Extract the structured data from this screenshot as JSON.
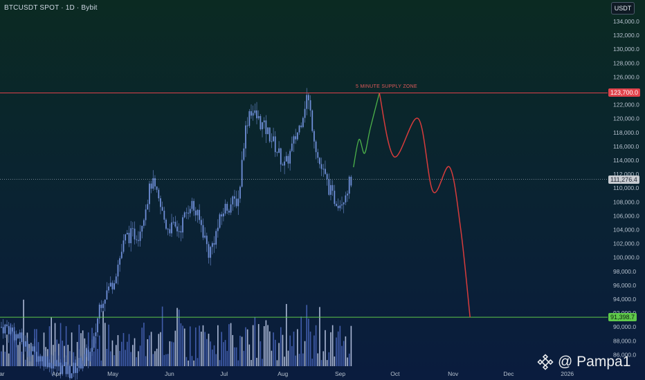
{
  "header": {
    "title": "BTCUSDT SPOT · 1D · Bybit",
    "currency": "USDT"
  },
  "annotations": {
    "supply_zone_label": "5 MINUTE SUPPLY ZONE"
  },
  "price_tags": {
    "supply_level": "123,700.0",
    "current_price": "111,276.4",
    "target_level": "91,398.7"
  },
  "watermark": {
    "text": "@ Pampa1"
  },
  "colors": {
    "candles": "#6f8fd8",
    "volume": "#4b68c0",
    "volume_light": "#c9d5f2",
    "supply_line": "#e0424b",
    "target_line": "#5fc94a",
    "path_green": "#4db34a",
    "path_red": "#d83c3c",
    "axis_text": "#b7c2cf"
  },
  "chart_data": {
    "type": "line",
    "title": "BTCUSDT SPOT · 1D · Bybit",
    "ylim": [
      85000,
      135500
    ],
    "y_ticks": [
      "86,000.0",
      "88,000.0",
      "90,000.0",
      "92,000.0",
      "94,000.0",
      "96,000.0",
      "98,000.0",
      "100,000.0",
      "102,000.0",
      "104,000.0",
      "106,000.0",
      "108,000.0",
      "110,000.0",
      "112,000.0",
      "114,000.0",
      "116,000.0",
      "118,000.0",
      "120,000.0",
      "122,000.0",
      "124,000.0",
      "126,000.0",
      "128,000.0",
      "130,000.0",
      "132,000.0",
      "134,000.0"
    ],
    "y_tick_values": [
      86000,
      88000,
      90000,
      92000,
      94000,
      96000,
      98000,
      100000,
      102000,
      104000,
      106000,
      108000,
      110000,
      112000,
      114000,
      116000,
      118000,
      120000,
      122000,
      124000,
      126000,
      128000,
      130000,
      132000,
      134000
    ],
    "x_labels": [
      "Mar",
      "Apr",
      "May",
      "Jun",
      "Jul",
      "Aug",
      "Sep",
      "Oct",
      "Nov",
      "Dec",
      "2026"
    ],
    "horizontal_levels": [
      {
        "name": "supply",
        "value": 123700
      },
      {
        "name": "current",
        "value": 111276.4
      },
      {
        "name": "target",
        "value": 91398.7
      }
    ],
    "price_series": [
      {
        "date": "2025-03-05",
        "value": 90000
      },
      {
        "date": "2025-03-20",
        "value": 86000
      },
      {
        "date": "2025-04-08",
        "value": 83500
      },
      {
        "date": "2025-04-20",
        "value": 86500
      },
      {
        "date": "2025-04-24",
        "value": 93500
      },
      {
        "date": "2025-05-01",
        "value": 96500
      },
      {
        "date": "2025-05-08",
        "value": 103000
      },
      {
        "date": "2025-05-15",
        "value": 103500
      },
      {
        "date": "2025-05-22",
        "value": 111000
      },
      {
        "date": "2025-05-30",
        "value": 104500
      },
      {
        "date": "2025-06-06",
        "value": 104000
      },
      {
        "date": "2025-06-12",
        "value": 108000
      },
      {
        "date": "2025-06-18",
        "value": 104500
      },
      {
        "date": "2025-06-22",
        "value": 100500
      },
      {
        "date": "2025-06-30",
        "value": 107000
      },
      {
        "date": "2025-07-08",
        "value": 108500
      },
      {
        "date": "2025-07-11",
        "value": 117500
      },
      {
        "date": "2025-07-14",
        "value": 121500
      },
      {
        "date": "2025-07-25",
        "value": 117500
      },
      {
        "date": "2025-08-02",
        "value": 113000
      },
      {
        "date": "2025-08-10",
        "value": 119000
      },
      {
        "date": "2025-08-14",
        "value": 123500
      },
      {
        "date": "2025-08-20",
        "value": 114000
      },
      {
        "date": "2025-08-28",
        "value": 108500
      },
      {
        "date": "2025-09-01",
        "value": 108000
      },
      {
        "date": "2025-09-07",
        "value": 111276.4
      }
    ],
    "projection_green": [
      {
        "date": "2025-09-08",
        "value": 113000
      },
      {
        "date": "2025-09-11",
        "value": 117000
      },
      {
        "date": "2025-09-14",
        "value": 115000
      },
      {
        "date": "2025-09-17",
        "value": 118500
      },
      {
        "date": "2025-09-22",
        "value": 123700
      }
    ],
    "projection_red": [
      {
        "date": "2025-09-22",
        "value": 123700
      },
      {
        "date": "2025-09-30",
        "value": 114500
      },
      {
        "date": "2025-10-13",
        "value": 120000
      },
      {
        "date": "2025-10-21",
        "value": 109500
      },
      {
        "date": "2025-10-30",
        "value": 113000
      },
      {
        "date": "2025-11-05",
        "value": 104000
      },
      {
        "date": "2025-11-10",
        "value": 91398.7
      }
    ],
    "grid": false,
    "legend": "none"
  }
}
